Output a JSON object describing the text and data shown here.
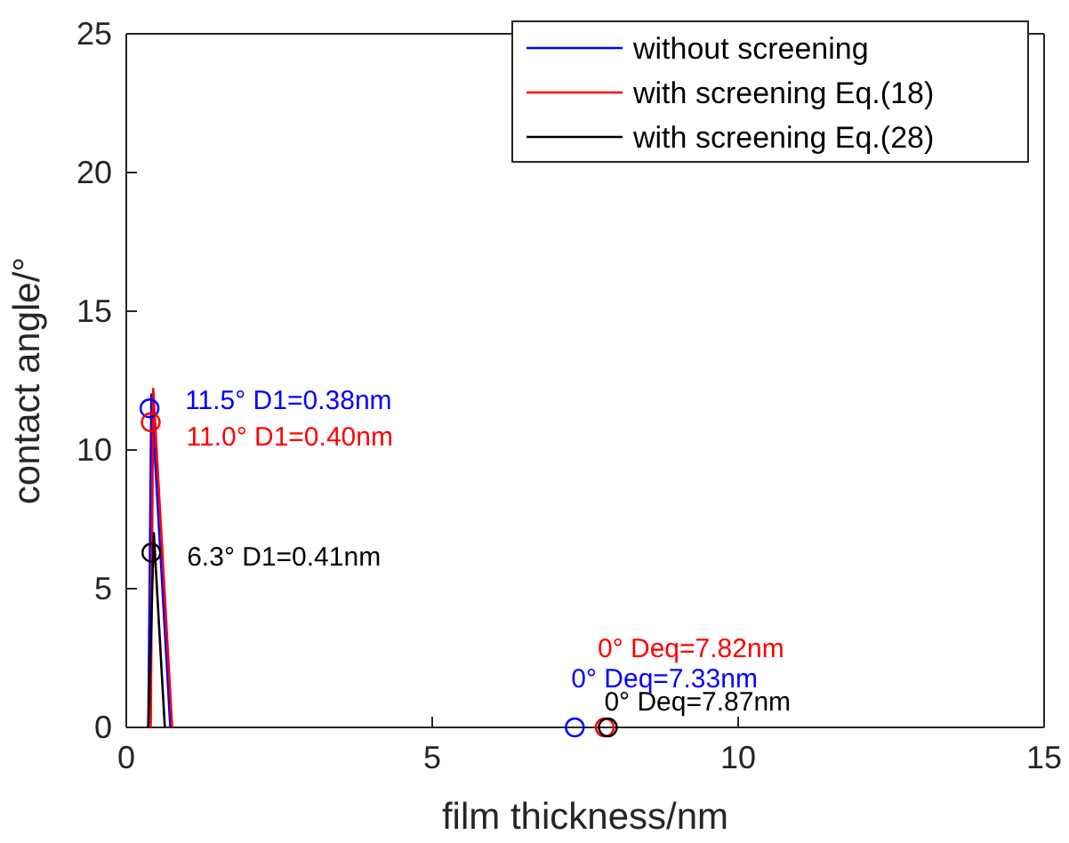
{
  "chart_data": {
    "type": "line",
    "xlabel": "film thickness/nm",
    "ylabel": "contact angle/°",
    "xlim": [
      0,
      15
    ],
    "xticks": [
      0,
      5,
      10,
      15
    ],
    "ylim": [
      0,
      25
    ],
    "yticks": [
      0,
      5,
      10,
      15,
      20,
      25
    ],
    "legend": "top right",
    "grid": false,
    "series": [
      {
        "name": "without screening",
        "color": "#0000ff",
        "x": [
          0.36,
          0.41,
          0.72
        ],
        "values": [
          0,
          12.0,
          0
        ]
      },
      {
        "name": "with screening Eq.(18)",
        "color": "#ff0000",
        "x": [
          0.4,
          0.44,
          0.75
        ],
        "values": [
          0,
          12.2,
          0
        ]
      },
      {
        "name": "with screening Eq.(28)",
        "color": "#000000",
        "x": [
          0.36,
          0.45,
          0.63
        ],
        "values": [
          0,
          7.0,
          0
        ]
      },
      {
        "type": "scatter",
        "marker": "circle",
        "color": "#0000ff",
        "x": [
          0.38,
          7.33
        ],
        "values": [
          11.5,
          0
        ]
      },
      {
        "type": "scatter",
        "marker": "circle",
        "color": "#ff0000",
        "x": [
          0.4,
          7.82
        ],
        "values": [
          11.0,
          0
        ]
      },
      {
        "type": "scatter",
        "marker": "circle",
        "color": "#000000",
        "x": [
          0.41,
          7.87
        ],
        "values": [
          6.3,
          0
        ]
      }
    ],
    "annotations": [
      "11.5° D1=0.38nm",
      "0° Deq=7.33nm",
      "11.0° D1=0.40nm",
      "0° Deq=7.82nm",
      "6.3° D1=0.41nm",
      "0° Deq=7.87nm"
    ]
  }
}
